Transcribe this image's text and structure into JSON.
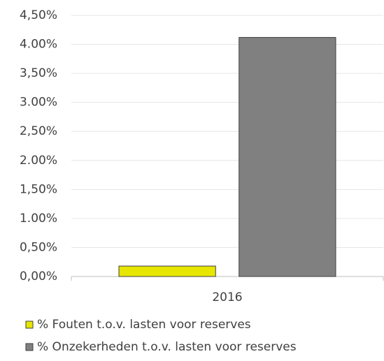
{
  "chart_data": {
    "type": "bar",
    "categories": [
      "2016"
    ],
    "series": [
      {
        "name": "% Fouten t.o.v. lasten voor reserves",
        "color": "#e6e600",
        "values": [
          0.18
        ]
      },
      {
        "name": "% Onzekerheden t.o.v. lasten voor reserves",
        "color": "#808080",
        "values": [
          4.12
        ]
      }
    ],
    "ylim": [
      0,
      4.5
    ],
    "yticks": [
      {
        "value": 0,
        "label": "0,00%"
      },
      {
        "value": 0.5,
        "label": "0,50%"
      },
      {
        "value": 1,
        "label": "1.00%"
      },
      {
        "value": 1.5,
        "label": "1,50%"
      },
      {
        "value": 2,
        "label": "2.00%"
      },
      {
        "value": 2.5,
        "label": "2,50%"
      },
      {
        "value": 3,
        "label": "3.00%"
      },
      {
        "value": 3.5,
        "label": "3,50%"
      },
      {
        "value": 4,
        "label": "4.00%"
      },
      {
        "value": 4.5,
        "label": "4,50%"
      }
    ],
    "grid": true,
    "legend": "bottom"
  }
}
